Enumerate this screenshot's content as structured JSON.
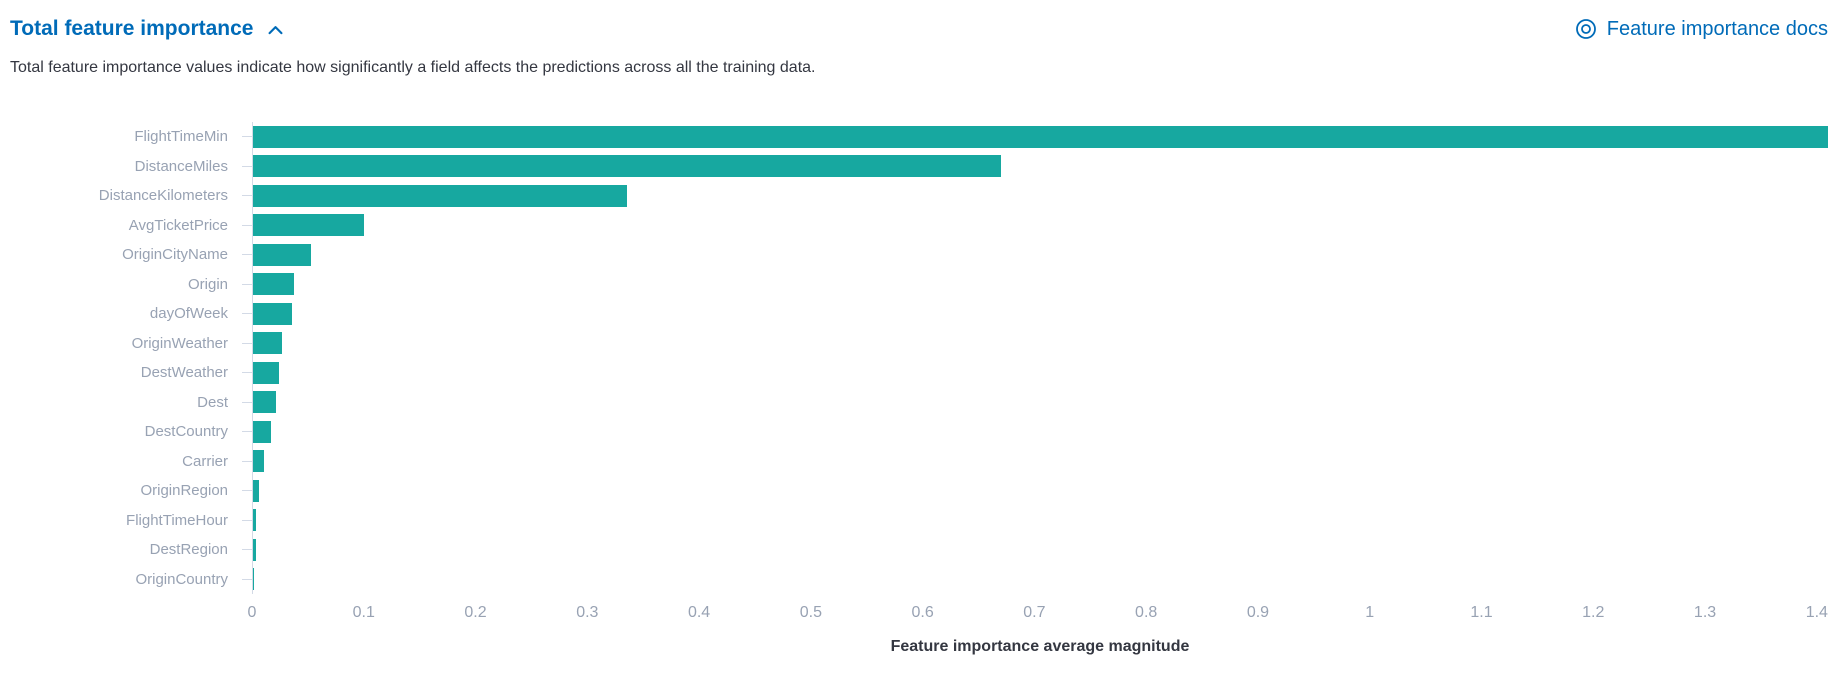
{
  "header": {
    "title": "Total feature importance",
    "collapse_icon": "chevron-up-icon",
    "docs_link": {
      "icon": "docs-icon",
      "label": "Feature importance docs"
    }
  },
  "description": "Total feature importance values indicate how significantly a field affects the predictions across all the training data.",
  "colors": {
    "link": "#006bb8",
    "bar": "#17a8a0",
    "axis_line": "#d3dae6",
    "tick_label": "#98a2b3",
    "text": "#343741"
  },
  "chart_data": {
    "type": "bar",
    "orientation": "horizontal",
    "title": "",
    "xlabel": "Feature importance average magnitude",
    "ylabel": "",
    "xlim": [
      0,
      1.41
    ],
    "grid": false,
    "legend": false,
    "categories": [
      "FlightTimeMin",
      "DistanceMiles",
      "DistanceKilometers",
      "AvgTicketPrice",
      "OriginCityName",
      "Origin",
      "dayOfWeek",
      "OriginWeather",
      "DestWeather",
      "Dest",
      "DestCountry",
      "Carrier",
      "OriginRegion",
      "FlightTimeHour",
      "DestRegion",
      "OriginCountry"
    ],
    "values": [
      1.41,
      0.67,
      0.335,
      0.099,
      0.052,
      0.037,
      0.035,
      0.026,
      0.023,
      0.021,
      0.016,
      0.01,
      0.005,
      0.003,
      0.0025,
      0.0008
    ],
    "x_tick_labels": [
      "0",
      "0.1",
      "0.2",
      "0.3",
      "0.4",
      "0.5",
      "0.6",
      "0.7",
      "0.8",
      "0.9",
      "1",
      "1.1",
      "1.2",
      "1.3",
      "1.4"
    ],
    "x_tick_step": 0.1,
    "bar_color": "#17a8a0"
  }
}
